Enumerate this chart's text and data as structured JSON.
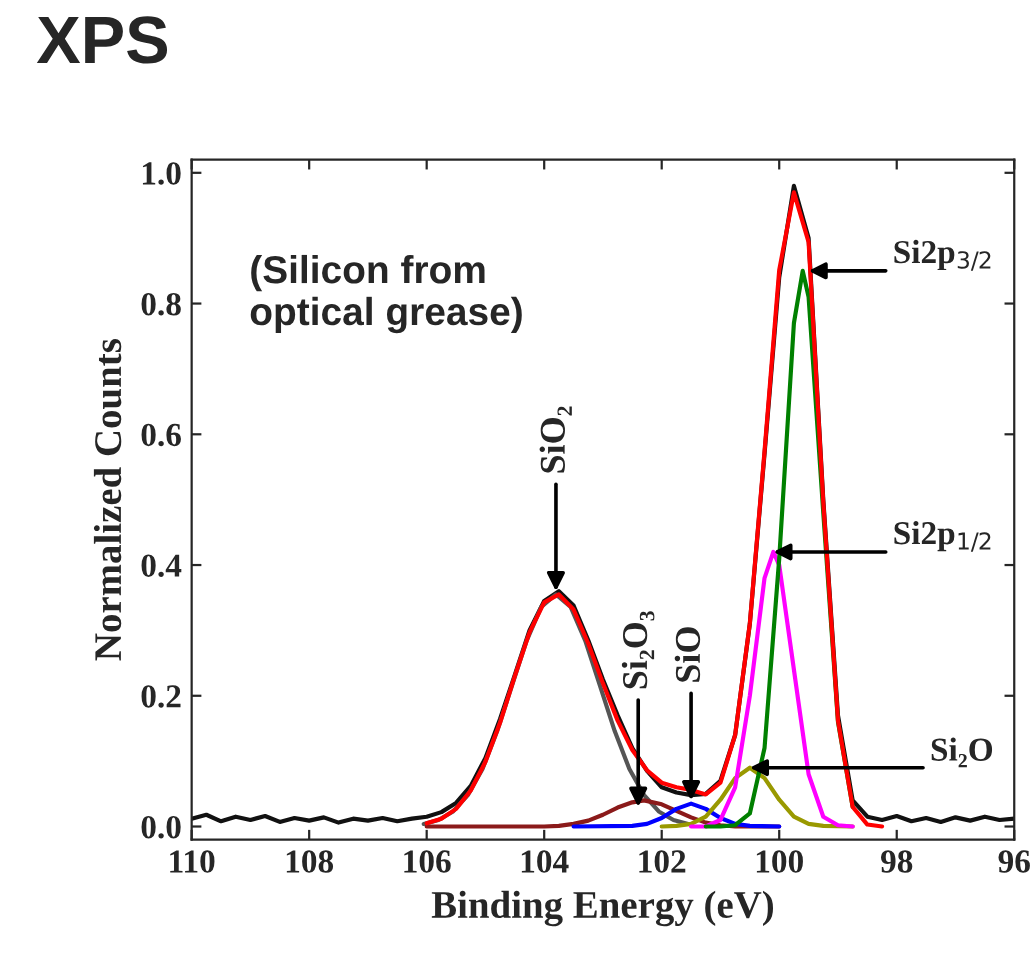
{
  "chart_data": {
    "type": "line",
    "title": "XPS",
    "xlabel": "Binding Energy (eV)",
    "ylabel": "Normalized Counts",
    "xlim": [
      110,
      96
    ],
    "xticks": [
      110,
      108,
      106,
      104,
      102,
      100,
      98,
      96
    ],
    "ylim": [
      -0.02,
      1.02
    ],
    "yticks": [
      {
        "value": 0,
        "label": "0.0"
      },
      {
        "value": 0.2,
        "label": "0.2"
      },
      {
        "value": 0.4,
        "label": "0.4"
      },
      {
        "value": 0.6,
        "label": "0.6"
      },
      {
        "value": 0.8,
        "label": "0.8"
      },
      {
        "value": 1.0,
        "label": "1.0"
      }
    ],
    "grid": false,
    "legend": false,
    "marker": "none",
    "line_style": "solid",
    "series": [
      {
        "color": "#111111",
        "x": [
          110,
          109.75,
          109.5,
          109.25,
          109.0,
          108.75,
          108.5,
          108.25,
          108.0,
          107.75,
          107.5,
          107.25,
          107.0,
          106.75,
          106.5,
          106.25,
          106.0,
          105.75,
          105.5,
          105.25,
          105.0,
          104.75,
          104.5,
          104.25,
          104.0,
          103.75,
          103.5,
          103.25,
          103.0,
          102.75,
          102.5,
          102.25,
          102.0,
          101.75,
          101.5,
          101.25,
          101.0,
          100.75,
          100.5,
          100.25,
          100.0,
          99.75,
          99.5,
          99.25,
          99.0,
          98.75,
          98.5,
          98.25,
          98.0,
          97.75,
          97.5,
          97.25,
          97.0,
          96.75,
          96.5,
          96.25,
          96.0
        ],
        "values": [
          0.012,
          0.018,
          0.008,
          0.015,
          0.01,
          0.016,
          0.007,
          0.013,
          0.009,
          0.014,
          0.006,
          0.012,
          0.009,
          0.013,
          0.008,
          0.012,
          0.015,
          0.022,
          0.036,
          0.062,
          0.105,
          0.165,
          0.232,
          0.3,
          0.345,
          0.36,
          0.338,
          0.285,
          0.225,
          0.17,
          0.12,
          0.085,
          0.06,
          0.052,
          0.048,
          0.05,
          0.07,
          0.14,
          0.31,
          0.57,
          0.84,
          0.98,
          0.9,
          0.5,
          0.17,
          0.04,
          0.015,
          0.01,
          0.016,
          0.008,
          0.013,
          0.007,
          0.014,
          0.009,
          0.015,
          0.01,
          0.012
        ]
      },
      {
        "color": "#555555",
        "x": [
          106.05,
          105.8,
          105.55,
          105.3,
          105.05,
          104.8,
          104.55,
          104.3,
          104.05,
          103.8,
          103.55,
          103.3,
          103.05,
          102.8,
          102.55,
          102.3,
          102.05,
          101.8,
          101.55
        ],
        "values": [
          0.004,
          0.01,
          0.023,
          0.048,
          0.088,
          0.146,
          0.215,
          0.284,
          0.336,
          0.355,
          0.336,
          0.284,
          0.215,
          0.146,
          0.088,
          0.048,
          0.023,
          0.01,
          0.004
        ]
      },
      {
        "color": "#8b1a1a",
        "x": [
          106.0,
          104.0,
          103.75,
          103.5,
          103.25,
          103.0,
          102.75,
          102.5,
          102.3,
          102.0,
          101.75,
          101.5,
          101.25,
          101.0,
          100.75,
          100.0
        ],
        "values": [
          0.0,
          0.0,
          0.001,
          0.004,
          0.009,
          0.018,
          0.029,
          0.037,
          0.04,
          0.034,
          0.024,
          0.014,
          0.006,
          0.002,
          0.0,
          0.0
        ]
      },
      {
        "color": "#0000ff",
        "x": [
          103.5,
          102.5,
          102.25,
          102.0,
          101.75,
          101.5,
          101.25,
          101.0,
          100.75,
          100.5,
          100.0
        ],
        "values": [
          0.0,
          0.001,
          0.004,
          0.013,
          0.027,
          0.035,
          0.027,
          0.013,
          0.004,
          0.001,
          0.0
        ]
      },
      {
        "color": "#999900",
        "x": [
          102.0,
          101.75,
          101.5,
          101.25,
          101.0,
          100.75,
          100.5,
          100.25,
          100.0,
          99.75,
          99.5,
          99.25,
          98.75
        ],
        "values": [
          0.0,
          0.001,
          0.004,
          0.015,
          0.041,
          0.074,
          0.09,
          0.074,
          0.041,
          0.015,
          0.004,
          0.001,
          0.0
        ]
      },
      {
        "color": "#ff00ff",
        "x": [
          101.5,
          101.25,
          101.0,
          100.75,
          100.5,
          100.25,
          100.1,
          100.0,
          99.75,
          99.5,
          99.25,
          99.0,
          98.75
        ],
        "values": [
          0.0,
          0.0,
          0.01,
          0.06,
          0.2,
          0.38,
          0.42,
          0.4,
          0.24,
          0.08,
          0.015,
          0.002,
          0.0
        ]
      },
      {
        "color": "#008000",
        "x": [
          101.25,
          101.0,
          100.75,
          100.5,
          100.25,
          100.0,
          99.75,
          99.6,
          99.5,
          99.25,
          99.0,
          98.75
        ],
        "values": [
          0.0,
          0.0,
          0.002,
          0.02,
          0.12,
          0.41,
          0.77,
          0.85,
          0.81,
          0.48,
          0.16,
          0.03
        ]
      },
      {
        "color": "#ff0000",
        "x": [
          106.0,
          105.75,
          105.5,
          105.25,
          105.0,
          104.75,
          104.5,
          104.25,
          104.0,
          103.75,
          103.5,
          103.25,
          103.0,
          102.75,
          102.5,
          102.25,
          102.0,
          101.75,
          101.5,
          101.25,
          101.0,
          100.75,
          100.5,
          100.25,
          100.0,
          99.75,
          99.5,
          99.25,
          99.0,
          98.75,
          98.5,
          98.25
        ],
        "values": [
          0.005,
          0.012,
          0.027,
          0.055,
          0.099,
          0.159,
          0.23,
          0.297,
          0.343,
          0.355,
          0.332,
          0.28,
          0.219,
          0.162,
          0.117,
          0.086,
          0.067,
          0.06,
          0.056,
          0.049,
          0.067,
          0.14,
          0.311,
          0.574,
          0.851,
          0.97,
          0.894,
          0.496,
          0.162,
          0.03,
          0.003,
          0.0
        ]
      }
    ],
    "annotations": [
      "(Silicon from\noptical grease)",
      {
        "text": "SiO₂",
        "x": 103.8,
        "y": 0.36
      },
      {
        "text": "Si₂O₃",
        "x": 102.4,
        "y": 0.03
      },
      {
        "text": "SiO",
        "x": 101.5,
        "y": 0.04
      },
      {
        "text": "Si2p$_{3/2}$",
        "x": 99.5,
        "y": 0.85
      },
      {
        "text": "Si2p$_{1/2}$",
        "x": 100.1,
        "y": 0.42
      },
      {
        "text": "Si₂O",
        "x": 100.5,
        "y": 0.09
      }
    ]
  }
}
